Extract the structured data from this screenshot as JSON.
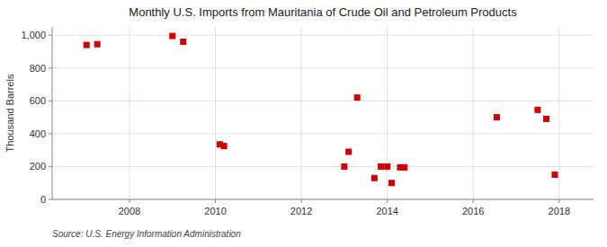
{
  "chart_data": {
    "type": "scatter",
    "title": "Monthly U.S. Imports from Mauritania of Crude Oil and Petroleum Products",
    "ylabel": "Thousand Barrels",
    "annotations": [
      "Source: U.S. Energy Information Administration"
    ],
    "color": "#cc0000",
    "marker": "square",
    "grid": true,
    "xlim": [
      2006.2,
      2018.8
    ],
    "ylim": [
      0,
      1050
    ],
    "xticks": [
      2008,
      2010,
      2012,
      2014,
      2016,
      2018
    ],
    "yticks": [
      0,
      200,
      400,
      600,
      800,
      {
        "value": 1000,
        "label": "1,000"
      }
    ],
    "x": [
      2007.0,
      2007.25,
      2009.0,
      2009.25,
      2010.1,
      2010.2,
      2013.0,
      2013.1,
      2013.3,
      2013.7,
      2013.85,
      2014.0,
      2014.1,
      2014.3,
      2014.4,
      2016.55,
      2017.5,
      2017.7,
      2017.9
    ],
    "values": [
      940,
      945,
      995,
      960,
      335,
      325,
      200,
      290,
      620,
      130,
      200,
      200,
      100,
      195,
      195,
      500,
      545,
      490,
      150
    ]
  }
}
